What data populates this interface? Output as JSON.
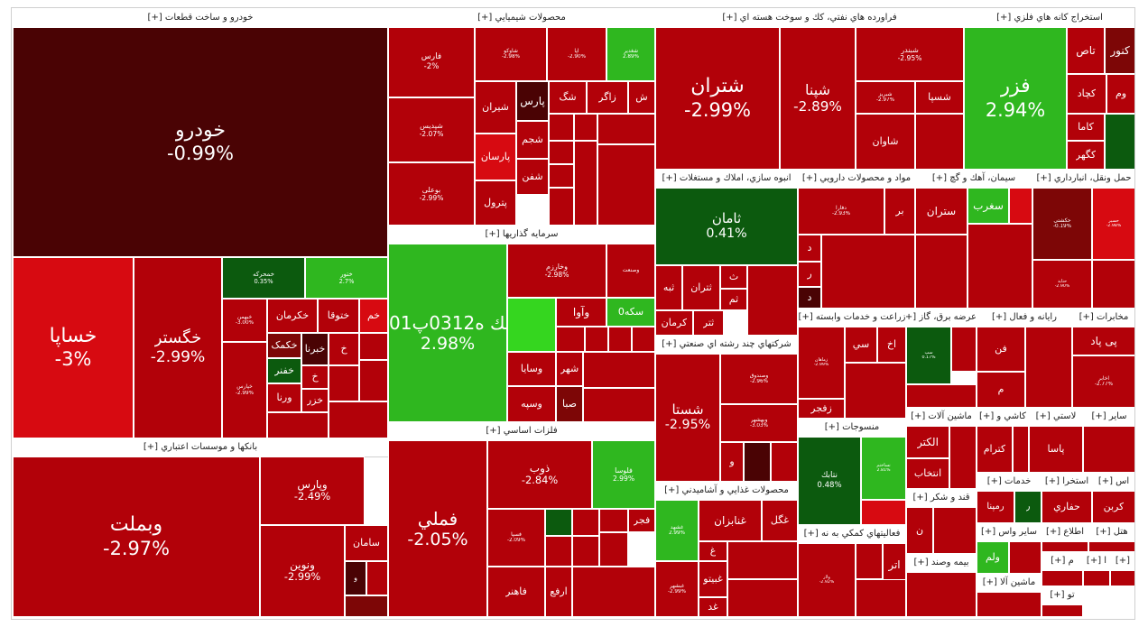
{
  "colors": {
    "dark_maroon": "#4a0304",
    "deep_red": "#7d0606",
    "red": "#b20109",
    "bright_red": "#d70a11",
    "green": "#2fb71f",
    "bright_green": "#35d61f",
    "dark_green": "#0c5a0e",
    "page_bg": "#ffffff"
  },
  "sectors": [
    {
      "title": "خودرو و ساخت قطعات [+]",
      "tiles": [
        {
          "name": "خودرو",
          "pct": "-0.99%"
        },
        {
          "name": "خساپا",
          "pct": "-3%"
        },
        {
          "name": "خگستر",
          "pct": "-2.99%"
        },
        {
          "name": "خمحرکه",
          "pct": "0.35%"
        },
        {
          "name": "ختور",
          "pct": "2.7%"
        },
        {
          "name": "خبهمن",
          "pct": "-3.00%"
        },
        {
          "name": "خکرمان",
          "pct": ""
        },
        {
          "name": "ختوقا",
          "pct": ""
        },
        {
          "name": "خم",
          "pct": ""
        },
        {
          "name": "خکمک",
          "pct": ""
        },
        {
          "name": "خبرنا",
          "pct": ""
        },
        {
          "name": "خ",
          "pct": ""
        },
        {
          "name": "خفنر",
          "pct": ""
        },
        {
          "name": "خ",
          "pct": ""
        },
        {
          "name": "ورنا",
          "pct": ""
        },
        {
          "name": "خزر",
          "pct": ""
        },
        {
          "name": "خپارس",
          "pct": "-2.99%"
        }
      ]
    },
    {
      "title": "بانکها و موسسات اعتباري [+]",
      "tiles": [
        {
          "name": "وبملت",
          "pct": "-2.97%"
        },
        {
          "name": "وپارس",
          "pct": "-2.49%"
        },
        {
          "name": "ونوين",
          "pct": "-2.99%"
        },
        {
          "name": "سامان",
          "pct": ""
        },
        {
          "name": "و",
          "pct": ""
        }
      ]
    },
    {
      "title": "محصولات شيميايي [+]",
      "tiles": [
        {
          "name": "فارس",
          "pct": "-2%"
        },
        {
          "name": "شپديس",
          "pct": "-2.07%"
        },
        {
          "name": "بوعلی",
          "pct": "-2.99%"
        },
        {
          "name": "شيران",
          "pct": ""
        },
        {
          "name": "پارسان",
          "pct": ""
        },
        {
          "name": "پترول",
          "pct": ""
        },
        {
          "name": "پارس",
          "pct": ""
        },
        {
          "name": "شجم",
          "pct": ""
        },
        {
          "name": "شفن",
          "pct": ""
        },
        {
          "name": "شگ",
          "pct": ""
        },
        {
          "name": "زاگر",
          "pct": ""
        },
        {
          "name": "ش",
          "pct": ""
        },
        {
          "name": "شاوکو",
          "pct": "-2.98%"
        },
        {
          "name": "آپا",
          "pct": "-2.90%"
        },
        {
          "name": "شغدیر",
          "pct": "2.89%"
        }
      ]
    },
    {
      "title": "سرمايه گذاريها [+]",
      "tiles": [
        {
          "name": "سك ه0312پ01",
          "pct": "2.98%"
        },
        {
          "name": "وخارزم",
          "pct": "-2.98%"
        },
        {
          "name": "وصنعت",
          "pct": ""
        },
        {
          "name": "وآوا",
          "pct": ""
        },
        {
          "name": "سکه0",
          "pct": ""
        },
        {
          "name": "وسايا",
          "pct": ""
        },
        {
          "name": "شهر",
          "pct": ""
        },
        {
          "name": "وسپه",
          "pct": ""
        },
        {
          "name": "صبا",
          "pct": ""
        }
      ]
    },
    {
      "title": "فلزات اساسي [+]",
      "tiles": [
        {
          "name": "فملي",
          "pct": "-2.05%"
        },
        {
          "name": "ذوب",
          "pct": "-2.84%"
        },
        {
          "name": "فلوسا",
          "pct": "2.99%"
        },
        {
          "name": "فاهنر",
          "pct": ""
        },
        {
          "name": "ارفع",
          "pct": ""
        },
        {
          "name": "فجر",
          "pct": ""
        },
        {
          "name": "فسپا",
          "pct": "-2.09%"
        }
      ]
    },
    {
      "title": "فراورده هاي نفتي، كك و سوخت هسته اي [+]",
      "tiles": [
        {
          "name": "شتران",
          "pct": "-2.99%"
        },
        {
          "name": "شپنا",
          "pct": "-2.89%"
        },
        {
          "name": "شبندر",
          "pct": "-2.95%"
        },
        {
          "name": "شسپا",
          "pct": ""
        },
        {
          "name": "شاوان",
          "pct": ""
        },
        {
          "name": "شبریز",
          "pct": "-2.97%"
        }
      ]
    },
    {
      "title": "استخراج كانه هاي فلزي [+]",
      "tiles": [
        {
          "name": "فزر",
          "pct": "2.94%"
        },
        {
          "name": "كنور",
          "pct": ""
        },
        {
          "name": "تاص",
          "pct": ""
        },
        {
          "name": "كچاد",
          "pct": ""
        },
        {
          "name": "وم",
          "pct": ""
        },
        {
          "name": "كاما",
          "pct": ""
        },
        {
          "name": "كگهر",
          "pct": ""
        }
      ]
    },
    {
      "title": "انبوه سازي، املاك و مستغلات [+]",
      "tiles": [
        {
          "name": "ثامان",
          "pct": "0.41%"
        },
        {
          "name": "ث",
          "pct": ""
        },
        {
          "name": "ثبه",
          "pct": ""
        },
        {
          "name": "ثتران",
          "pct": ""
        },
        {
          "name": "ثتر",
          "pct": ""
        },
        {
          "name": "ثم",
          "pct": ""
        },
        {
          "name": "كرمان",
          "pct": ""
        }
      ]
    },
    {
      "title": "شركتهاي چند رشته اي صنعتي [+]",
      "tiles": [
        {
          "name": "شستا",
          "pct": "-2.95%"
        },
        {
          "name": "وصندوق",
          "pct": "-2.96%"
        },
        {
          "name": "وبهشهر",
          "pct": "-3.03%"
        },
        {
          "name": "و",
          "pct": ""
        }
      ]
    },
    {
      "title": "محصولات غذايي و آشاميدني [+]",
      "tiles": [
        {
          "name": "غگل",
          "pct": ""
        },
        {
          "name": "غنابزان",
          "pct": ""
        },
        {
          "name": "غبيتو",
          "pct": ""
        },
        {
          "name": "غد",
          "pct": ""
        },
        {
          "name": "غ",
          "pct": ""
        },
        {
          "name": "غشهد",
          "pct": "2.99%"
        },
        {
          "name": "غبشهر",
          "pct": "-2.99%"
        }
      ]
    },
    {
      "title": "مواد و محصولات دارويي [+]",
      "tiles": [
        {
          "name": "دفارا",
          "pct": "-2.93%"
        },
        {
          "name": "بر",
          "pct": ""
        },
        {
          "name": "د",
          "pct": ""
        },
        {
          "name": "ر",
          "pct": ""
        },
        {
          "name": "د",
          "pct": ""
        }
      ]
    },
    {
      "title": "سيمان، آهك و گچ [+]",
      "tiles": [
        {
          "name": "ستران",
          "pct": ""
        },
        {
          "name": "سغرب",
          "pct": ""
        }
      ]
    },
    {
      "title": "حمل ونقل، انبارداري [+]",
      "tiles": [
        {
          "name": "حکشتی",
          "pct": "-0.19%"
        },
        {
          "name": "حسیر",
          "pct": "-2.98%"
        },
        {
          "name": "حتاید",
          "pct": "-2.90%"
        }
      ]
    },
    {
      "title": "زراعت و خدمات وابسته [+]",
      "tiles": [
        {
          "name": "زماهان",
          "pct": "-2.99%"
        },
        {
          "name": "سي",
          "pct": ""
        },
        {
          "name": "اخ",
          "pct": ""
        },
        {
          "name": "زفجر",
          "pct": ""
        }
      ]
    },
    {
      "title": "عرضه برق، گاز [+]",
      "tiles": [
        {
          "name": "سپ",
          "pct": "0.17%"
        }
      ]
    },
    {
      "title": "رايانه و فعال [+]",
      "tiles": [
        {
          "name": "فن",
          "pct": ""
        },
        {
          "name": "م",
          "pct": ""
        }
      ]
    },
    {
      "title": "مخابرات [+]",
      "tiles": [
        {
          "name": "پی پاد",
          "pct": ""
        },
        {
          "name": "اخابر",
          "pct": "-2.77%"
        }
      ]
    },
    {
      "title": "منسوجات [+]",
      "tiles": [
        {
          "name": "نتابك",
          "pct": "0.48%"
        },
        {
          "name": "نساختم",
          "pct": "2.81%"
        }
      ]
    },
    {
      "title": "فعاليتهاي كمكي به نه [+]",
      "tiles": [
        {
          "name": "اتر",
          "pct": ""
        },
        {
          "name": "ولار",
          "pct": "-2.92%"
        }
      ]
    },
    {
      "title": "ماشين آلات [+]",
      "tiles": [
        {
          "name": "الكتر",
          "pct": ""
        },
        {
          "name": "انتخاب",
          "pct": ""
        }
      ]
    },
    {
      "title": "قند و شكر [+]",
      "tiles": [
        {
          "name": "ن",
          "pct": ""
        }
      ]
    },
    {
      "title": "بيمه وصند [+]",
      "tiles": []
    },
    {
      "title": "كاشي و [+]",
      "tiles": [
        {
          "name": "كترام",
          "pct": ""
        }
      ]
    },
    {
      "title": "لاستي [+]",
      "tiles": [
        {
          "name": "پاسا",
          "pct": ""
        }
      ]
    },
    {
      "title": "ساير [+]",
      "tiles": []
    },
    {
      "title": "خدمات [+]",
      "tiles": [
        {
          "name": "رمپنا",
          "pct": ""
        },
        {
          "name": "ر",
          "pct": ""
        }
      ]
    },
    {
      "title": "استخرا [+]",
      "tiles": [
        {
          "name": "حفاري",
          "pct": ""
        }
      ]
    },
    {
      "title": "اس [+]",
      "tiles": [
        {
          "name": "كربن",
          "pct": ""
        }
      ]
    },
    {
      "title": "اطلاع [+]",
      "tiles": []
    },
    {
      "title": "هتل [+]",
      "tiles": []
    },
    {
      "title": "ساير واس [+]",
      "tiles": [
        {
          "name": "ولم",
          "pct": ""
        }
      ]
    },
    {
      "title": "م [+]",
      "tiles": []
    },
    {
      "title": "ا [+]",
      "tiles": []
    },
    {
      "title": "[+]",
      "tiles": []
    },
    {
      "title": "ماشين آلا [+]",
      "tiles": []
    },
    {
      "title": "تو [+]",
      "tiles": []
    }
  ]
}
